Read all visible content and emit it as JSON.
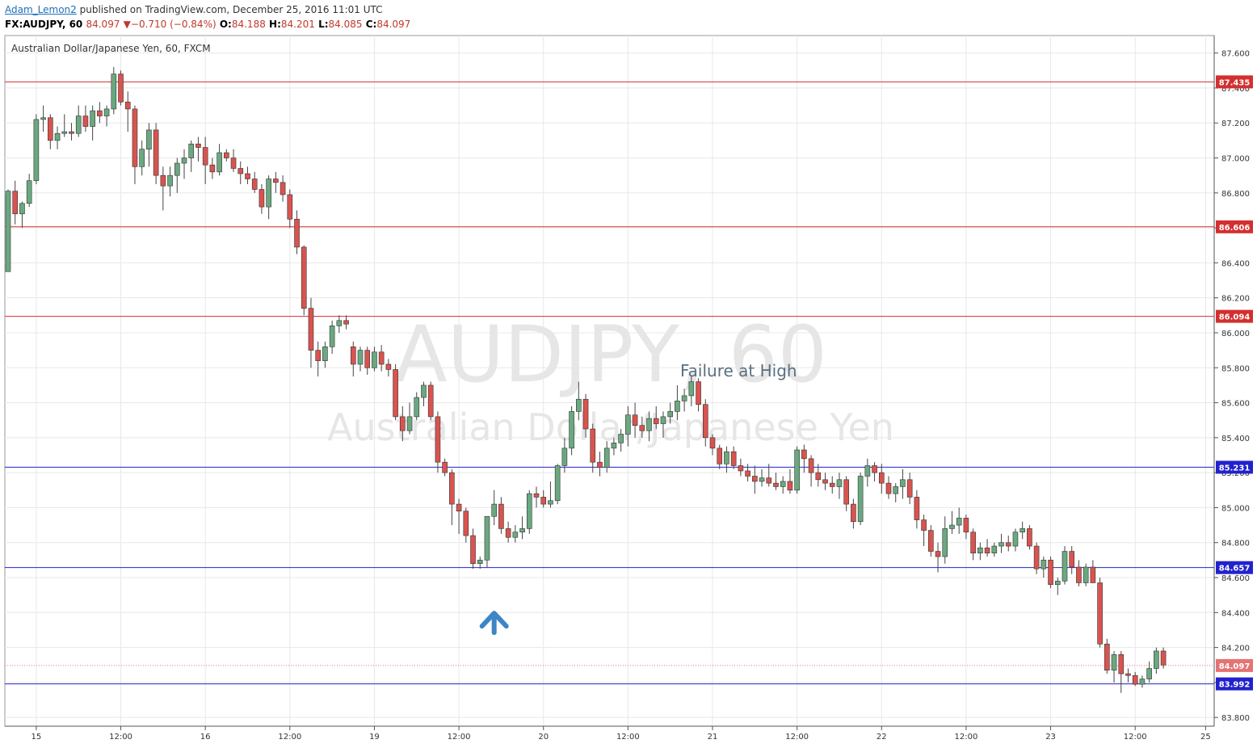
{
  "header": {
    "user": "Adam_Lemon2",
    "published_text": " published on TradingView.com, December 25, 2016 11:01 UTC"
  },
  "symbol_bar": {
    "symbol": "FX:AUDJPY, 60",
    "last": "84.097",
    "change_arrow": "▼",
    "change": "−0.710 (−0.84%)",
    "o_label": "O:",
    "o": "84.188",
    "h_label": "H:",
    "h": "84.201",
    "l_label": "L:",
    "l": "84.085",
    "c_label": "C:",
    "c": "84.097"
  },
  "chart_data": {
    "type": "candlestick",
    "title": "Australian Dollar/Japanese Yen, 60, FXCM",
    "watermark_line1": "AUDJPY, 60",
    "watermark_line2": "Australian Dollar/Japanese Yen",
    "annotation": "Failure at High",
    "ylim": [
      83.75,
      87.7
    ],
    "y_ticks": [
      "83.800",
      "84.000",
      "84.200",
      "84.400",
      "84.600",
      "84.800",
      "85.000",
      "85.200",
      "85.400",
      "85.600",
      "85.800",
      "86.000",
      "86.200",
      "86.400",
      "86.600",
      "86.800",
      "87.000",
      "87.200",
      "87.400",
      "87.600"
    ],
    "x_ticks": [
      {
        "label": "15",
        "bar": 4
      },
      {
        "label": "12:00",
        "bar": 16
      },
      {
        "label": "16",
        "bar": 28
      },
      {
        "label": "12:00",
        "bar": 40
      },
      {
        "label": "19",
        "bar": 52
      },
      {
        "label": "12:00",
        "bar": 64
      },
      {
        "label": "20",
        "bar": 76
      },
      {
        "label": "12:00",
        "bar": 88
      },
      {
        "label": "21",
        "bar": 100
      },
      {
        "label": "12:00",
        "bar": 112
      },
      {
        "label": "22",
        "bar": 124
      },
      {
        "label": "12:00",
        "bar": 136
      },
      {
        "label": "23",
        "bar": 148
      },
      {
        "label": "12:00",
        "bar": 160
      },
      {
        "label": "25",
        "bar": 170
      }
    ],
    "levels": [
      {
        "value": 87.435,
        "label": "87.435",
        "color": "#d32f2f"
      },
      {
        "value": 86.606,
        "label": "86.606",
        "color": "#d32f2f"
      },
      {
        "value": 86.094,
        "label": "86.094",
        "color": "#d32f2f"
      },
      {
        "value": 85.231,
        "label": "85.231",
        "color": "#2222cc"
      },
      {
        "value": 84.657,
        "label": "84.657",
        "color": "#2222cc"
      },
      {
        "value": 83.992,
        "label": "83.992",
        "color": "#2222cc"
      }
    ],
    "last_price": {
      "value": 84.097,
      "label": "84.097",
      "color": "#e57373"
    },
    "arrow_marker": {
      "bar": 69,
      "value": 84.35,
      "color": "#3d85c6"
    },
    "colors": {
      "up": "#6aa980",
      "down": "#d9534f",
      "wick": "#444444",
      "grid": "#e8e8e8"
    },
    "candles": [
      [
        86.35,
        86.82,
        86.35,
        86.81
      ],
      [
        86.81,
        86.87,
        86.62,
        86.68
      ],
      [
        86.68,
        86.75,
        86.6,
        86.74
      ],
      [
        86.74,
        86.91,
        86.72,
        86.87
      ],
      [
        86.87,
        87.25,
        86.85,
        87.22
      ],
      [
        87.22,
        87.3,
        87.15,
        87.23
      ],
      [
        87.23,
        87.25,
        87.05,
        87.1
      ],
      [
        87.1,
        87.18,
        87.05,
        87.14
      ],
      [
        87.14,
        87.25,
        87.12,
        87.15
      ],
      [
        87.15,
        87.2,
        87.1,
        87.14
      ],
      [
        87.14,
        87.3,
        87.12,
        87.24
      ],
      [
        87.24,
        87.3,
        87.15,
        87.18
      ],
      [
        87.18,
        87.3,
        87.1,
        87.27
      ],
      [
        87.27,
        87.32,
        87.2,
        87.24
      ],
      [
        87.24,
        87.3,
        87.18,
        87.28
      ],
      [
        87.28,
        87.52,
        87.25,
        87.48
      ],
      [
        87.48,
        87.5,
        87.3,
        87.32
      ],
      [
        87.32,
        87.38,
        87.15,
        87.28
      ],
      [
        87.28,
        87.3,
        86.85,
        86.95
      ],
      [
        86.95,
        87.1,
        86.9,
        87.05
      ],
      [
        87.05,
        87.2,
        86.95,
        87.16
      ],
      [
        87.16,
        87.2,
        86.85,
        86.9
      ],
      [
        86.9,
        86.95,
        86.7,
        86.84
      ],
      [
        86.84,
        86.95,
        86.78,
        86.9
      ],
      [
        86.9,
        87.0,
        86.8,
        86.97
      ],
      [
        86.97,
        87.05,
        86.88,
        87.0
      ],
      [
        87.0,
        87.1,
        86.92,
        87.08
      ],
      [
        87.08,
        87.12,
        86.98,
        87.06
      ],
      [
        87.06,
        87.12,
        86.85,
        86.96
      ],
      [
        86.96,
        87.0,
        86.88,
        86.92
      ],
      [
        86.92,
        87.08,
        86.9,
        87.03
      ],
      [
        87.03,
        87.05,
        86.98,
        87.0
      ],
      [
        87.0,
        87.05,
        86.92,
        86.94
      ],
      [
        86.94,
        86.98,
        86.85,
        86.91
      ],
      [
        86.91,
        86.95,
        86.85,
        86.88
      ],
      [
        86.88,
        86.92,
        86.8,
        86.82
      ],
      [
        86.82,
        86.85,
        86.68,
        86.72
      ],
      [
        86.72,
        86.9,
        86.65,
        86.88
      ],
      [
        86.88,
        86.92,
        86.8,
        86.86
      ],
      [
        86.86,
        86.9,
        86.75,
        86.79
      ],
      [
        86.79,
        86.82,
        86.6,
        86.65
      ],
      [
        86.65,
        86.7,
        86.45,
        86.49
      ],
      [
        86.49,
        86.5,
        86.1,
        86.14
      ],
      [
        86.14,
        86.2,
        85.8,
        85.9
      ],
      [
        85.9,
        85.95,
        85.75,
        85.84
      ],
      [
        85.84,
        85.95,
        85.8,
        85.92
      ],
      [
        85.92,
        86.07,
        85.88,
        86.04
      ],
      [
        86.04,
        86.1,
        86.0,
        86.07
      ],
      [
        86.07,
        86.1,
        86.02,
        86.05
      ],
      [
        85.92,
        85.95,
        85.75,
        85.82
      ],
      [
        85.82,
        85.92,
        85.78,
        85.9
      ],
      [
        85.9,
        85.92,
        85.76,
        85.8
      ],
      [
        85.8,
        85.92,
        85.78,
        85.89
      ],
      [
        85.89,
        85.93,
        85.78,
        85.82
      ],
      [
        85.82,
        85.85,
        85.75,
        85.79
      ],
      [
        85.79,
        85.82,
        85.5,
        85.52
      ],
      [
        85.52,
        85.58,
        85.38,
        85.44
      ],
      [
        85.44,
        85.6,
        85.42,
        85.52
      ],
      [
        85.52,
        85.66,
        85.5,
        85.63
      ],
      [
        85.63,
        85.72,
        85.58,
        85.7
      ],
      [
        85.7,
        85.72,
        85.5,
        85.52
      ],
      [
        85.52,
        85.55,
        85.2,
        85.26
      ],
      [
        85.26,
        85.28,
        85.18,
        85.2
      ],
      [
        85.2,
        85.22,
        84.9,
        85.02
      ],
      [
        85.02,
        85.05,
        84.85,
        84.98
      ],
      [
        84.98,
        85.0,
        84.8,
        84.84
      ],
      [
        84.84,
        84.88,
        84.65,
        84.68
      ],
      [
        84.68,
        84.72,
        84.65,
        84.7
      ],
      [
        84.7,
        84.95,
        84.66,
        84.95
      ],
      [
        84.95,
        85.1,
        84.9,
        85.02
      ],
      [
        85.02,
        85.06,
        84.85,
        84.88
      ],
      [
        84.88,
        84.92,
        84.8,
        84.83
      ],
      [
        84.83,
        84.9,
        84.8,
        84.86
      ],
      [
        84.86,
        84.95,
        84.82,
        84.88
      ],
      [
        84.88,
        85.1,
        84.85,
        85.08
      ],
      [
        85.08,
        85.12,
        85.0,
        85.06
      ],
      [
        85.06,
        85.1,
        85.0,
        85.02
      ],
      [
        85.02,
        85.15,
        85.0,
        85.04
      ],
      [
        85.04,
        85.25,
        85.02,
        85.24
      ],
      [
        85.24,
        85.4,
        85.2,
        85.34
      ],
      [
        85.34,
        85.58,
        85.3,
        85.55
      ],
      [
        85.55,
        85.72,
        85.5,
        85.62
      ],
      [
        85.62,
        85.65,
        85.4,
        85.45
      ],
      [
        85.45,
        85.48,
        85.2,
        85.26
      ],
      [
        85.26,
        85.32,
        85.18,
        85.23
      ],
      [
        85.23,
        85.38,
        85.2,
        85.34
      ],
      [
        85.34,
        85.4,
        85.3,
        85.37
      ],
      [
        85.37,
        85.45,
        85.32,
        85.42
      ],
      [
        85.42,
        85.58,
        85.35,
        85.53
      ],
      [
        85.53,
        85.6,
        85.4,
        85.47
      ],
      [
        85.47,
        85.52,
        85.4,
        85.44
      ],
      [
        85.44,
        85.55,
        85.38,
        85.51
      ],
      [
        85.51,
        85.58,
        85.45,
        85.48
      ],
      [
        85.48,
        85.55,
        85.4,
        85.52
      ],
      [
        85.52,
        85.6,
        85.48,
        85.55
      ],
      [
        85.55,
        85.7,
        85.5,
        85.61
      ],
      [
        85.61,
        85.68,
        85.55,
        85.64
      ],
      [
        85.64,
        85.75,
        85.58,
        85.72
      ],
      [
        85.72,
        85.74,
        85.55,
        85.59
      ],
      [
        85.59,
        85.62,
        85.35,
        85.4
      ],
      [
        85.4,
        85.42,
        85.3,
        85.34
      ],
      [
        85.34,
        85.36,
        85.22,
        85.25
      ],
      [
        85.25,
        85.35,
        85.2,
        85.32
      ],
      [
        85.32,
        85.35,
        85.22,
        85.24
      ],
      [
        85.24,
        85.28,
        85.18,
        85.21
      ],
      [
        85.21,
        85.25,
        85.15,
        85.18
      ],
      [
        85.18,
        85.24,
        85.08,
        85.15
      ],
      [
        85.15,
        85.22,
        85.12,
        85.17
      ],
      [
        85.17,
        85.25,
        85.12,
        85.14
      ],
      [
        85.14,
        85.2,
        85.1,
        85.12
      ],
      [
        85.12,
        85.18,
        85.08,
        85.15
      ],
      [
        85.15,
        85.22,
        85.08,
        85.1
      ],
      [
        85.1,
        85.35,
        85.08,
        85.33
      ],
      [
        85.33,
        85.36,
        85.2,
        85.28
      ],
      [
        85.28,
        85.3,
        85.12,
        85.2
      ],
      [
        85.2,
        85.25,
        85.12,
        85.16
      ],
      [
        85.16,
        85.2,
        85.1,
        85.14
      ],
      [
        85.14,
        85.18,
        85.08,
        85.12
      ],
      [
        85.12,
        85.2,
        85.05,
        85.16
      ],
      [
        85.16,
        85.18,
        84.98,
        85.02
      ],
      [
        85.02,
        85.05,
        84.88,
        84.92
      ],
      [
        84.92,
        85.2,
        84.9,
        85.18
      ],
      [
        85.18,
        85.28,
        85.12,
        85.24
      ],
      [
        85.24,
        85.26,
        85.15,
        85.2
      ],
      [
        85.2,
        85.25,
        85.08,
        85.14
      ],
      [
        85.14,
        85.18,
        85.05,
        85.08
      ],
      [
        85.08,
        85.14,
        85.03,
        85.12
      ],
      [
        85.12,
        85.22,
        85.05,
        85.16
      ],
      [
        85.16,
        85.2,
        85.02,
        85.06
      ],
      [
        85.06,
        85.1,
        84.88,
        84.93
      ],
      [
        84.93,
        84.96,
        84.78,
        84.87
      ],
      [
        84.87,
        84.9,
        84.72,
        84.75
      ],
      [
        84.75,
        84.8,
        84.63,
        84.72
      ],
      [
        84.72,
        84.95,
        84.68,
        84.88
      ],
      [
        84.88,
        84.98,
        84.85,
        84.9
      ],
      [
        84.9,
        85.0,
        84.85,
        84.94
      ],
      [
        84.94,
        84.96,
        84.82,
        84.86
      ],
      [
        84.86,
        84.88,
        84.7,
        84.74
      ],
      [
        84.74,
        84.8,
        84.7,
        84.77
      ],
      [
        84.77,
        84.82,
        84.72,
        84.74
      ],
      [
        84.74,
        84.8,
        84.72,
        84.78
      ],
      [
        84.78,
        84.85,
        84.74,
        84.8
      ],
      [
        84.8,
        84.84,
        84.75,
        84.78
      ],
      [
        84.78,
        84.88,
        84.75,
        84.86
      ],
      [
        84.86,
        84.92,
        84.82,
        84.88
      ],
      [
        84.88,
        84.9,
        84.76,
        84.78
      ],
      [
        84.78,
        84.8,
        84.62,
        84.65
      ],
      [
        84.65,
        84.72,
        84.6,
        84.7
      ],
      [
        84.7,
        84.72,
        84.54,
        84.56
      ],
      [
        84.56,
        84.6,
        84.5,
        84.58
      ],
      [
        84.58,
        84.78,
        84.56,
        84.75
      ],
      [
        84.75,
        84.78,
        84.62,
        84.66
      ],
      [
        84.66,
        84.7,
        84.55,
        84.57
      ],
      [
        84.57,
        84.68,
        84.55,
        84.66
      ],
      [
        84.66,
        84.7,
        84.58,
        84.57
      ],
      [
        84.57,
        84.6,
        84.2,
        84.22
      ],
      [
        84.22,
        84.25,
        84.05,
        84.07
      ],
      [
        84.07,
        84.18,
        84.0,
        84.16
      ],
      [
        84.16,
        84.18,
        83.94,
        84.05
      ],
      [
        84.05,
        84.08,
        84.0,
        84.04
      ],
      [
        84.04,
        84.06,
        83.98,
        83.99
      ],
      [
        83.99,
        84.04,
        83.97,
        84.02
      ],
      [
        84.02,
        84.12,
        84.0,
        84.08
      ],
      [
        84.08,
        84.2,
        84.05,
        84.18
      ],
      [
        84.18,
        84.2,
        84.08,
        84.1
      ]
    ]
  }
}
